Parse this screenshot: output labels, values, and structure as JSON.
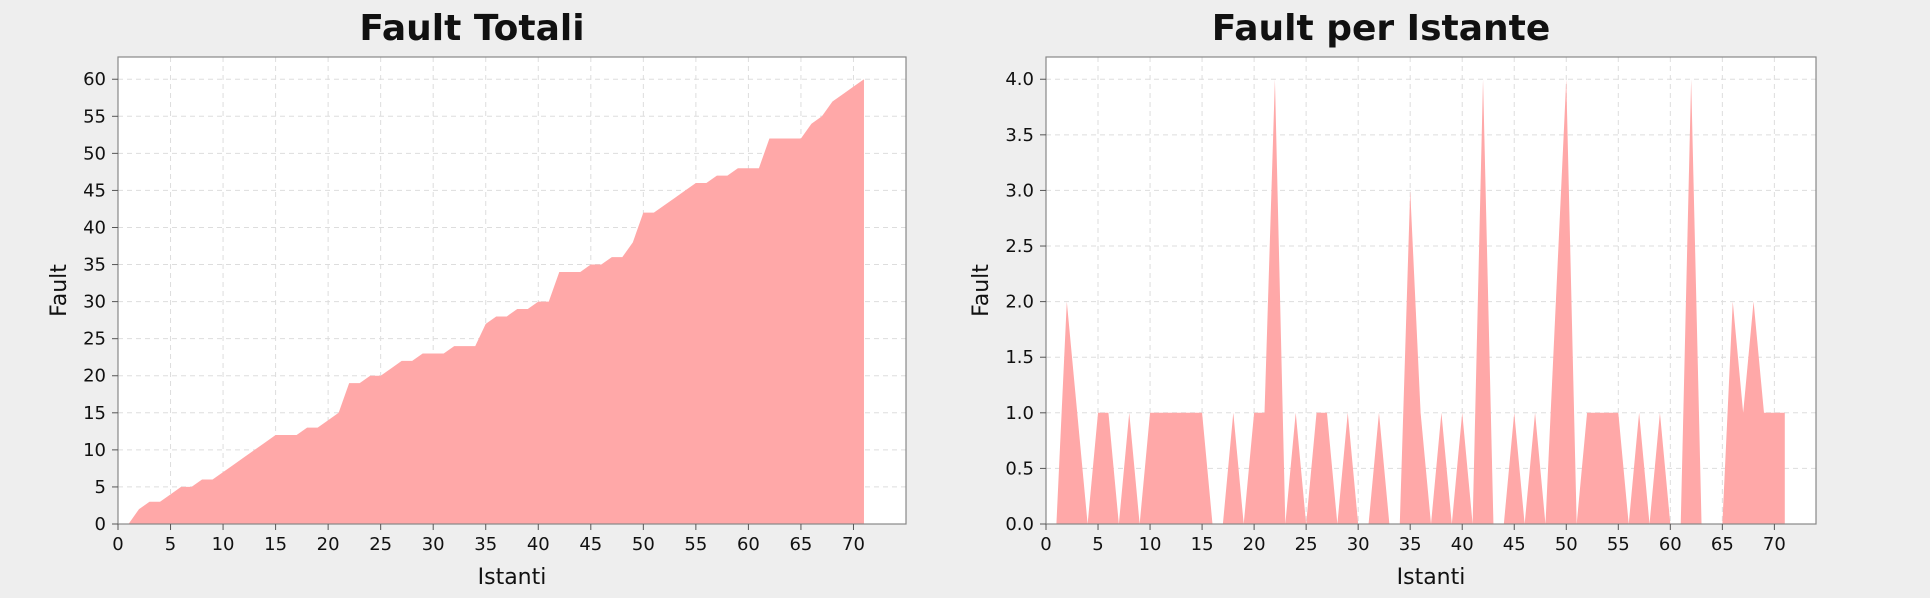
{
  "chart_data": [
    {
      "type": "area",
      "title": "Fault Totali",
      "xlabel": "Istanti",
      "ylabel": "Fault",
      "xlim": [
        0,
        75
      ],
      "ylim": [
        0,
        63
      ],
      "xticks": [
        0,
        5,
        10,
        15,
        20,
        25,
        30,
        35,
        40,
        45,
        50,
        55,
        60,
        65,
        70
      ],
      "yticks": [
        0,
        5,
        10,
        15,
        20,
        25,
        30,
        35,
        40,
        45,
        50,
        55,
        60
      ],
      "grid": true,
      "color": "#ffa8a8",
      "series": [
        {
          "x": [
            1,
            2,
            3,
            4,
            5,
            6,
            7,
            8,
            9,
            10,
            11,
            12,
            13,
            14,
            15,
            16,
            17,
            18,
            19,
            20,
            21,
            22,
            23,
            24,
            25,
            26,
            27,
            28,
            29,
            30,
            31,
            32,
            33,
            34,
            35,
            36,
            37,
            38,
            39,
            40,
            41,
            42,
            43,
            44,
            45,
            46,
            47,
            48,
            49,
            50,
            51,
            52,
            53,
            54,
            55,
            56,
            57,
            58,
            59,
            60,
            61,
            62,
            63,
            64,
            65,
            66,
            67,
            68,
            69,
            70,
            71
          ],
          "y": [
            0,
            2,
            3,
            3,
            4,
            5,
            5,
            6,
            6,
            7,
            8,
            9,
            10,
            11,
            12,
            12,
            12,
            13,
            13,
            14,
            15,
            19,
            19,
            20,
            20,
            21,
            22,
            22,
            23,
            23,
            23,
            24,
            24,
            24,
            27,
            28,
            28,
            29,
            29,
            30,
            30,
            34,
            34,
            34,
            35,
            35,
            36,
            36,
            38,
            42,
            42,
            43,
            44,
            45,
            46,
            46,
            47,
            47,
            48,
            48,
            48,
            52,
            52,
            52,
            52,
            54,
            55,
            57,
            58,
            59,
            60
          ]
        }
      ]
    },
    {
      "type": "area",
      "title": "Fault per Istante",
      "xlabel": "Istanti",
      "ylabel": "Fault",
      "xlim": [
        0,
        74
      ],
      "ylim": [
        0,
        4.2
      ],
      "xticks": [
        0,
        5,
        10,
        15,
        20,
        25,
        30,
        35,
        40,
        45,
        50,
        55,
        60,
        65,
        70
      ],
      "yticks": [
        "0.0",
        "0.5",
        "1.0",
        "1.5",
        "2.0",
        "2.5",
        "3.0",
        "3.5",
        "4.0"
      ],
      "grid": true,
      "color": "#ffa8a8",
      "series": [
        {
          "x": [
            1,
            2,
            3,
            4,
            5,
            6,
            7,
            8,
            9,
            10,
            11,
            12,
            13,
            14,
            15,
            16,
            17,
            18,
            19,
            20,
            21,
            22,
            23,
            24,
            25,
            26,
            27,
            28,
            29,
            30,
            31,
            32,
            33,
            34,
            35,
            36,
            37,
            38,
            39,
            40,
            41,
            42,
            43,
            44,
            45,
            46,
            47,
            48,
            49,
            50,
            51,
            52,
            53,
            54,
            55,
            56,
            57,
            58,
            59,
            60,
            61,
            62,
            63,
            64,
            65,
            66,
            67,
            68,
            69,
            70,
            71
          ],
          "y": [
            0,
            2,
            1,
            0,
            1,
            1,
            0,
            1,
            0,
            1,
            1,
            1,
            1,
            1,
            1,
            0,
            0,
            1,
            0,
            1,
            1,
            4,
            0,
            1,
            0,
            1,
            1,
            0,
            1,
            0,
            0,
            1,
            0,
            0,
            3,
            1,
            0,
            1,
            0,
            1,
            0,
            4,
            0,
            0,
            1,
            0,
            1,
            0,
            2,
            4,
            0,
            1,
            1,
            1,
            1,
            0,
            1,
            0,
            1,
            0,
            0,
            4,
            0,
            0,
            0,
            2,
            1,
            2,
            1,
            1,
            1
          ]
        }
      ]
    }
  ]
}
